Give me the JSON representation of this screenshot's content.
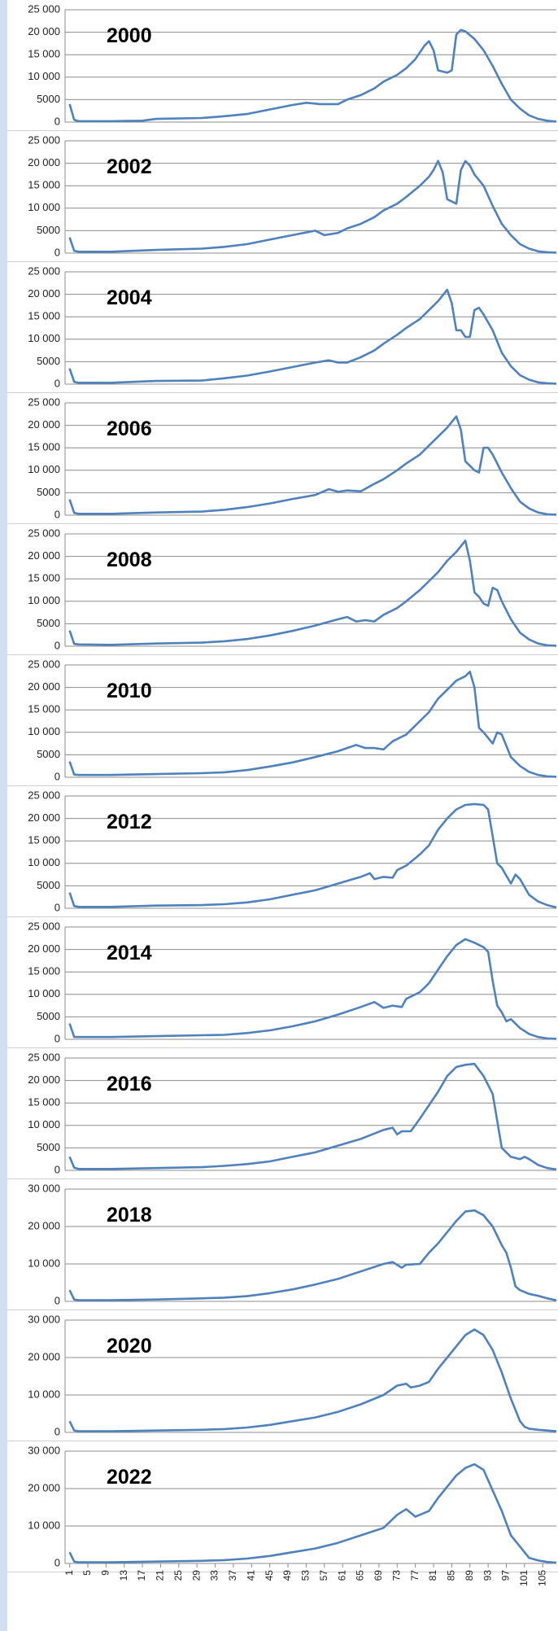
{
  "chart_data": [
    {
      "type": "line",
      "title": "2000",
      "color": "#4f81bd",
      "grid": true,
      "xlim": [
        0,
        108
      ],
      "ylim": [
        0,
        25000
      ],
      "yticks": [
        0,
        {
          "value": 5000,
          "label": "5000"
        },
        {
          "value": 10000,
          "label": "10 000"
        },
        {
          "value": 15000,
          "label": "15 000"
        },
        {
          "value": 20000,
          "label": "20 000"
        },
        {
          "value": 25000,
          "label": "25 000"
        }
      ],
      "x": [
        1,
        2,
        3,
        10,
        17,
        20,
        30,
        35,
        40,
        45,
        50,
        53,
        56,
        60,
        62,
        65,
        68,
        70,
        73,
        75,
        77,
        79,
        80,
        81,
        82,
        84,
        85,
        86,
        87,
        88,
        90,
        92,
        94,
        96,
        98,
        100,
        102,
        104,
        106,
        108
      ],
      "values": [
        4000,
        500,
        200,
        200,
        300,
        700,
        900,
        1300,
        1800,
        2800,
        3800,
        4300,
        4000,
        4000,
        5000,
        6000,
        7500,
        9000,
        10500,
        12000,
        14000,
        17000,
        18000,
        16000,
        11500,
        11000,
        11500,
        19500,
        20500,
        20200,
        18500,
        16000,
        12500,
        8500,
        5000,
        3000,
        1500,
        700,
        300,
        100
      ]
    },
    {
      "type": "line",
      "title": "2002",
      "color": "#4f81bd",
      "grid": true,
      "xlim": [
        0,
        108
      ],
      "ylim": [
        0,
        25000
      ],
      "yticks": [
        0,
        {
          "value": 5000,
          "label": "5000"
        },
        {
          "value": 10000,
          "label": "10 000"
        },
        {
          "value": 15000,
          "label": "15 000"
        },
        {
          "value": 20000,
          "label": "20 000"
        },
        {
          "value": 25000,
          "label": "25 000"
        }
      ],
      "x": [
        1,
        2,
        3,
        10,
        20,
        30,
        35,
        40,
        45,
        50,
        55,
        57,
        60,
        62,
        65,
        68,
        70,
        73,
        75,
        78,
        80,
        81,
        82,
        83,
        84,
        86,
        87,
        88,
        89,
        90,
        92,
        94,
        96,
        98,
        100,
        102,
        104,
        106,
        108
      ],
      "values": [
        3500,
        500,
        300,
        300,
        700,
        1000,
        1400,
        2000,
        3000,
        4000,
        5000,
        4000,
        4500,
        5500,
        6500,
        8000,
        9500,
        11000,
        12500,
        15000,
        17000,
        18500,
        20500,
        18000,
        12000,
        11000,
        18500,
        20500,
        19500,
        17500,
        15000,
        10500,
        6500,
        4000,
        2000,
        1000,
        400,
        200,
        100
      ]
    },
    {
      "type": "line",
      "title": "2004",
      "color": "#4f81bd",
      "grid": true,
      "xlim": [
        0,
        108
      ],
      "ylim": [
        0,
        25000
      ],
      "yticks": [
        0,
        {
          "value": 5000,
          "label": "5000"
        },
        {
          "value": 10000,
          "label": "10 000"
        },
        {
          "value": 15000,
          "label": "15 000"
        },
        {
          "value": 20000,
          "label": "20 000"
        },
        {
          "value": 25000,
          "label": "25 000"
        }
      ],
      "x": [
        1,
        2,
        3,
        10,
        20,
        30,
        35,
        40,
        45,
        50,
        55,
        58,
        60,
        62,
        65,
        68,
        70,
        73,
        75,
        78,
        80,
        82,
        84,
        85,
        86,
        87,
        88,
        89,
        90,
        91,
        92,
        94,
        96,
        98,
        100,
        102,
        104,
        106,
        108
      ],
      "values": [
        3500,
        500,
        300,
        300,
        700,
        800,
        1300,
        1900,
        2800,
        3800,
        4800,
        5300,
        4800,
        4800,
        6000,
        7500,
        9000,
        11000,
        12500,
        14500,
        16500,
        18500,
        21000,
        18000,
        12000,
        12000,
        10500,
        10500,
        16500,
        17000,
        15500,
        12000,
        7000,
        4000,
        2000,
        1000,
        400,
        200,
        100
      ]
    },
    {
      "type": "line",
      "title": "2006",
      "color": "#4f81bd",
      "grid": true,
      "xlim": [
        0,
        108
      ],
      "ylim": [
        0,
        25000
      ],
      "yticks": [
        0,
        {
          "value": 5000,
          "label": "5000"
        },
        {
          "value": 10000,
          "label": "10 000"
        },
        {
          "value": 15000,
          "label": "15 000"
        },
        {
          "value": 20000,
          "label": "20 000"
        },
        {
          "value": 25000,
          "label": "25 000"
        }
      ],
      "x": [
        1,
        2,
        3,
        10,
        20,
        30,
        35,
        40,
        45,
        50,
        55,
        58,
        60,
        62,
        65,
        68,
        70,
        73,
        75,
        78,
        80,
        82,
        84,
        86,
        87,
        88,
        89,
        90,
        91,
        92,
        93,
        94,
        96,
        98,
        100,
        102,
        104,
        106,
        108
      ],
      "values": [
        3500,
        500,
        300,
        300,
        600,
        800,
        1200,
        1800,
        2600,
        3600,
        4500,
        5800,
        5200,
        5500,
        5300,
        7000,
        8000,
        10000,
        11500,
        13500,
        15500,
        17500,
        19500,
        22000,
        19000,
        12000,
        11000,
        10000,
        9500,
        15000,
        15000,
        13500,
        9500,
        6000,
        3000,
        1500,
        600,
        200,
        100
      ]
    },
    {
      "type": "line",
      "title": "2008",
      "color": "#4f81bd",
      "grid": true,
      "xlim": [
        0,
        108
      ],
      "ylim": [
        0,
        25000
      ],
      "yticks": [
        0,
        {
          "value": 5000,
          "label": "5000"
        },
        {
          "value": 10000,
          "label": "10 000"
        },
        {
          "value": 15000,
          "label": "15 000"
        },
        {
          "value": 20000,
          "label": "20 000"
        },
        {
          "value": 25000,
          "label": "25 000"
        }
      ],
      "x": [
        1,
        2,
        3,
        10,
        20,
        30,
        35,
        40,
        45,
        50,
        55,
        60,
        62,
        64,
        66,
        68,
        70,
        73,
        75,
        78,
        80,
        82,
        84,
        86,
        88,
        89,
        90,
        91,
        92,
        93,
        94,
        95,
        96,
        98,
        100,
        102,
        104,
        106,
        108
      ],
      "values": [
        3500,
        500,
        400,
        300,
        600,
        800,
        1100,
        1600,
        2400,
        3400,
        4600,
        6000,
        6500,
        5500,
        5800,
        5500,
        7000,
        8500,
        10000,
        12500,
        14500,
        16500,
        19000,
        21000,
        23500,
        19000,
        12000,
        11000,
        9500,
        9000,
        13000,
        12500,
        10000,
        6000,
        3000,
        1500,
        600,
        200,
        100
      ]
    },
    {
      "type": "line",
      "title": "2010",
      "color": "#4f81bd",
      "grid": true,
      "xlim": [
        0,
        108
      ],
      "ylim": [
        0,
        25000
      ],
      "yticks": [
        0,
        {
          "value": 5000,
          "label": "5000"
        },
        {
          "value": 10000,
          "label": "10 000"
        },
        {
          "value": 15000,
          "label": "15 000"
        },
        {
          "value": 20000,
          "label": "20 000"
        },
        {
          "value": 25000,
          "label": "25 000"
        }
      ],
      "x": [
        1,
        2,
        3,
        10,
        20,
        30,
        35,
        40,
        45,
        50,
        55,
        60,
        62,
        64,
        66,
        68,
        70,
        72,
        75,
        78,
        80,
        82,
        84,
        86,
        88,
        89,
        90,
        91,
        92,
        94,
        95,
        96,
        97,
        98,
        100,
        102,
        104,
        106,
        108
      ],
      "values": [
        3500,
        600,
        500,
        500,
        700,
        900,
        1100,
        1600,
        2400,
        3300,
        4500,
        5800,
        6500,
        7200,
        6500,
        6500,
        6200,
        8000,
        9500,
        12500,
        14500,
        17500,
        19500,
        21500,
        22500,
        23500,
        20000,
        11000,
        10000,
        7500,
        10000,
        9500,
        7000,
        4500,
        2500,
        1200,
        500,
        200,
        100
      ]
    },
    {
      "type": "line",
      "title": "2012",
      "color": "#4f81bd",
      "grid": true,
      "xlim": [
        0,
        108
      ],
      "ylim": [
        0,
        25000
      ],
      "yticks": [
        0,
        {
          "value": 5000,
          "label": "5000"
        },
        {
          "value": 10000,
          "label": "10 000"
        },
        {
          "value": 15000,
          "label": "15 000"
        },
        {
          "value": 20000,
          "label": "20 000"
        },
        {
          "value": 25000,
          "label": "25 000"
        }
      ],
      "x": [
        1,
        2,
        3,
        10,
        20,
        30,
        35,
        40,
        45,
        50,
        55,
        60,
        65,
        67,
        68,
        70,
        72,
        73,
        75,
        78,
        80,
        82,
        84,
        86,
        88,
        90,
        92,
        93,
        94,
        95,
        96,
        98,
        99,
        100,
        102,
        104,
        106,
        108
      ],
      "values": [
        3500,
        500,
        300,
        300,
        600,
        700,
        900,
        1300,
        2000,
        3000,
        4000,
        5500,
        7000,
        7800,
        6500,
        7000,
        6800,
        8500,
        9500,
        12000,
        14000,
        17500,
        20000,
        22000,
        23000,
        23200,
        23000,
        22000,
        16000,
        10000,
        9000,
        5500,
        7500,
        6500,
        3000,
        1500,
        700,
        200
      ]
    },
    {
      "type": "line",
      "title": "2014",
      "color": "#4f81bd",
      "grid": true,
      "xlim": [
        0,
        108
      ],
      "ylim": [
        0,
        25000
      ],
      "yticks": [
        0,
        {
          "value": 5000,
          "label": "5000"
        },
        {
          "value": 10000,
          "label": "10 000"
        },
        {
          "value": 15000,
          "label": "15 000"
        },
        {
          "value": 20000,
          "label": "20 000"
        },
        {
          "value": 25000,
          "label": "25 000"
        }
      ],
      "x": [
        1,
        2,
        3,
        10,
        20,
        30,
        35,
        40,
        45,
        50,
        55,
        60,
        65,
        68,
        70,
        72,
        74,
        75,
        78,
        80,
        82,
        84,
        86,
        88,
        90,
        92,
        93,
        94,
        95,
        96,
        97,
        98,
        99,
        100,
        102,
        104,
        106,
        108
      ],
      "values": [
        3500,
        500,
        500,
        500,
        700,
        900,
        1000,
        1400,
        2000,
        2900,
        4000,
        5500,
        7200,
        8300,
        7000,
        7500,
        7200,
        9000,
        10500,
        12500,
        15500,
        18500,
        21000,
        22300,
        21500,
        20500,
        19500,
        13000,
        7500,
        6000,
        4000,
        4500,
        3500,
        2500,
        1200,
        500,
        200,
        100
      ]
    },
    {
      "type": "line",
      "title": "2016",
      "color": "#4f81bd",
      "grid": true,
      "xlim": [
        0,
        108
      ],
      "ylim": [
        0,
        25000
      ],
      "yticks": [
        0,
        {
          "value": 5000,
          "label": "5000"
        },
        {
          "value": 10000,
          "label": "10 000"
        },
        {
          "value": 15000,
          "label": "15 000"
        },
        {
          "value": 20000,
          "label": "20 000"
        },
        {
          "value": 25000,
          "label": "25 000"
        }
      ],
      "x": [
        1,
        2,
        3,
        10,
        20,
        30,
        35,
        40,
        45,
        50,
        55,
        60,
        65,
        70,
        72,
        73,
        74,
        76,
        78,
        80,
        82,
        84,
        86,
        88,
        90,
        92,
        94,
        95,
        96,
        97,
        98,
        100,
        101,
        102,
        104,
        106,
        108
      ],
      "values": [
        3000,
        600,
        300,
        300,
        500,
        700,
        1000,
        1400,
        2000,
        3000,
        4000,
        5500,
        7000,
        9000,
        9500,
        8000,
        8700,
        8700,
        11500,
        14500,
        17500,
        21000,
        23000,
        23500,
        23700,
        21000,
        17000,
        11000,
        5000,
        4000,
        3000,
        2500,
        3000,
        2500,
        1200,
        500,
        200
      ]
    },
    {
      "type": "line",
      "title": "2018",
      "color": "#4f81bd",
      "grid": true,
      "xlim": [
        0,
        108
      ],
      "ylim": [
        0,
        30000
      ],
      "yticks": [
        0,
        {
          "value": 10000,
          "label": "10 000"
        },
        {
          "value": 20000,
          "label": "20 000"
        },
        {
          "value": 30000,
          "label": "30 000"
        }
      ],
      "x": [
        1,
        2,
        3,
        10,
        20,
        30,
        35,
        40,
        45,
        50,
        55,
        60,
        65,
        70,
        72,
        74,
        75,
        78,
        80,
        82,
        84,
        86,
        88,
        90,
        92,
        94,
        96,
        97,
        98,
        99,
        100,
        102,
        104,
        106,
        108
      ],
      "values": [
        3000,
        500,
        300,
        300,
        500,
        800,
        1000,
        1400,
        2200,
        3200,
        4500,
        6000,
        8000,
        10000,
        10500,
        9000,
        9800,
        10000,
        13000,
        15500,
        18500,
        21500,
        24000,
        24300,
        23000,
        20000,
        15000,
        13000,
        9000,
        4000,
        3000,
        2000,
        1500,
        800,
        300
      ]
    },
    {
      "type": "line",
      "title": "2020",
      "color": "#4f81bd",
      "grid": true,
      "xlim": [
        0,
        108
      ],
      "ylim": [
        0,
        30000
      ],
      "yticks": [
        0,
        {
          "value": 10000,
          "label": "10 000"
        },
        {
          "value": 20000,
          "label": "20 000"
        },
        {
          "value": 30000,
          "label": "30 000"
        }
      ],
      "x": [
        1,
        2,
        3,
        10,
        20,
        30,
        35,
        40,
        45,
        50,
        55,
        60,
        65,
        70,
        73,
        75,
        76,
        78,
        80,
        82,
        84,
        86,
        88,
        90,
        92,
        94,
        96,
        98,
        100,
        101,
        102,
        104,
        106,
        108
      ],
      "values": [
        3000,
        500,
        300,
        300,
        500,
        700,
        900,
        1300,
        2000,
        3000,
        4000,
        5500,
        7500,
        10000,
        12500,
        13000,
        12000,
        12500,
        13500,
        17000,
        20000,
        23000,
        26000,
        27500,
        26000,
        22000,
        16000,
        9000,
        3000,
        1500,
        1000,
        700,
        500,
        300
      ]
    },
    {
      "type": "line",
      "title": "2022",
      "color": "#4f81bd",
      "grid": true,
      "xlim": [
        0,
        108
      ],
      "ylim": [
        0,
        30000
      ],
      "yticks": [
        0,
        {
          "value": 10000,
          "label": "10 000"
        },
        {
          "value": 20000,
          "label": "20 000"
        },
        {
          "value": 30000,
          "label": "30 000"
        }
      ],
      "xticks": [
        1,
        5,
        9,
        13,
        17,
        21,
        25,
        29,
        33,
        37,
        41,
        45,
        49,
        53,
        57,
        61,
        65,
        69,
        73,
        77,
        81,
        85,
        89,
        93,
        97,
        101,
        105
      ],
      "x": [
        1,
        2,
        3,
        10,
        20,
        30,
        35,
        40,
        45,
        50,
        55,
        60,
        65,
        70,
        73,
        75,
        77,
        78,
        80,
        82,
        84,
        86,
        88,
        90,
        92,
        94,
        96,
        98,
        100,
        102,
        104,
        106,
        108
      ],
      "values": [
        3000,
        500,
        300,
        300,
        500,
        700,
        900,
        1300,
        2000,
        3000,
        4000,
        5500,
        7500,
        9500,
        13000,
        14500,
        12500,
        13000,
        14000,
        17500,
        20500,
        23500,
        25500,
        26500,
        25000,
        19500,
        14000,
        7500,
        4500,
        1500,
        800,
        400,
        200
      ]
    }
  ]
}
